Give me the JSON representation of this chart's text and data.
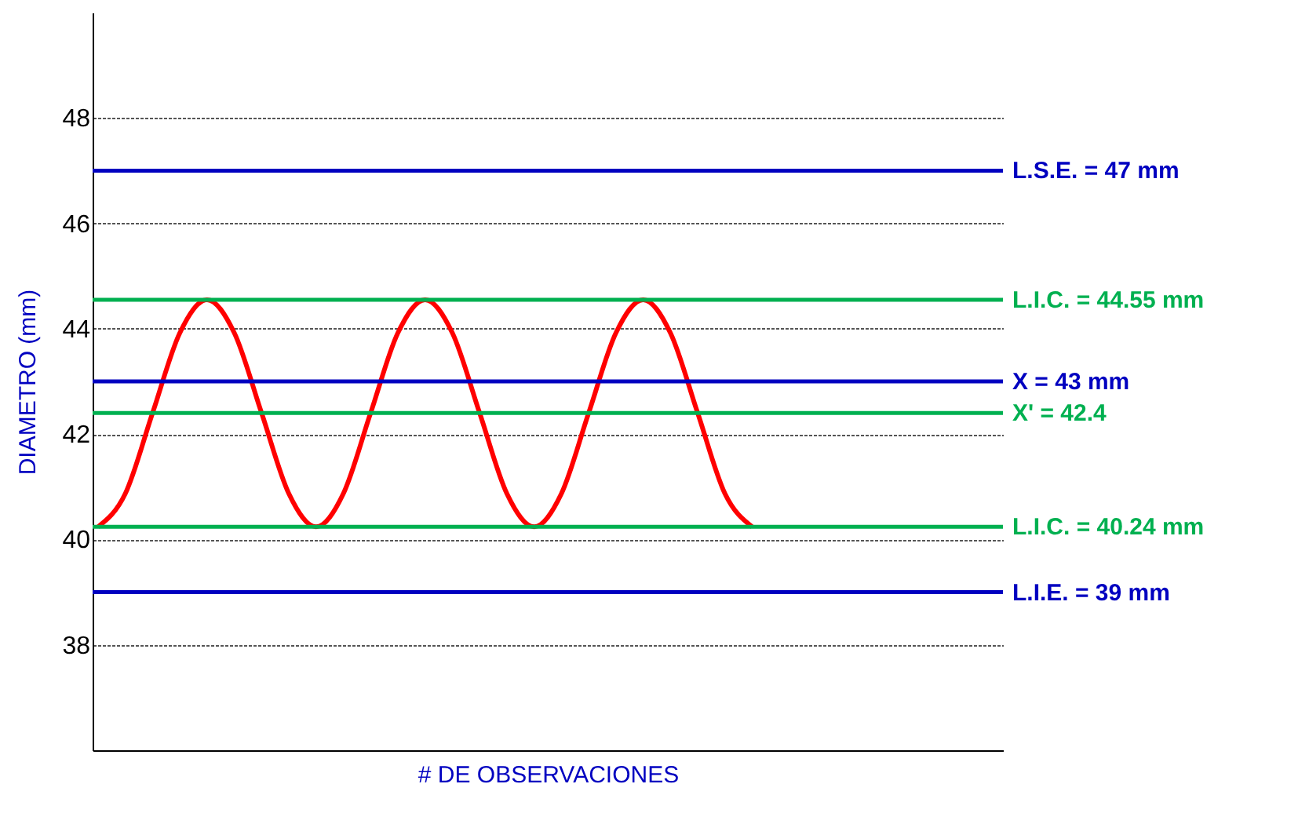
{
  "chart_data": {
    "type": "line",
    "xlabel": "# DE OBSERVACIONES",
    "ylabel": "DIAMETRO (mm)",
    "categories": [
      null,
      null,
      null,
      null,
      null,
      null,
      null,
      null,
      null,
      null,
      null,
      null,
      null,
      null,
      null,
      null,
      null,
      null,
      null,
      null,
      null,
      null,
      null,
      null,
      null,
      null,
      null,
      null,
      null,
      null,
      null,
      null,
      null,
      null
    ],
    "series": [
      {
        "color": "#ff0000",
        "values": [
          40.24,
          40.87,
          42.4,
          43.92,
          44.55,
          43.92,
          42.4,
          40.87,
          40.24,
          40.87,
          42.4,
          43.92,
          44.55,
          43.92,
          42.4,
          40.87,
          40.24,
          40.87,
          42.4,
          43.92,
          44.55,
          43.92,
          42.4,
          40.87,
          40.24,
          null,
          null,
          null,
          null,
          null,
          null,
          null,
          null,
          null
        ]
      }
    ],
    "ylim": [
      36,
      50
    ],
    "yticks": [
      38,
      40,
      42,
      44,
      46,
      48
    ],
    "grid": "y",
    "tick_labels": "y",
    "ref_lines": [
      {
        "axis": "y",
        "value": 47,
        "label": "L.S.E. = 47 mm",
        "color": "#0000c0"
      },
      {
        "axis": "y",
        "value": 44.55,
        "label": "L.I.C. = 44.55 mm",
        "color": "#00b050"
      },
      {
        "axis": "y",
        "value": 43,
        "label": "X = 43 mm",
        "color": "#0000c0"
      },
      {
        "axis": "y",
        "value": 42.4,
        "label": "X' = 42.4",
        "color": "#00b050"
      },
      {
        "axis": "y",
        "value": 40.24,
        "label": "L.I.C. = 40.24 mm",
        "color": "#00b050"
      },
      {
        "axis": "y",
        "value": 39,
        "label": "L.I.E. = 39 mm",
        "color": "#0000c0"
      }
    ]
  }
}
